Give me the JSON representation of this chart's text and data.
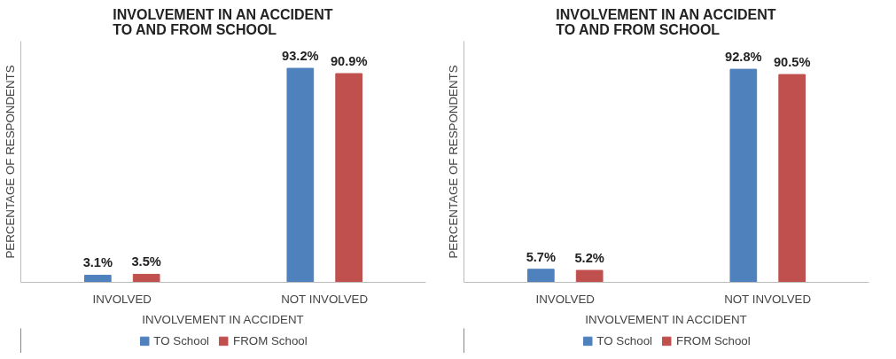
{
  "chart_data": [
    {
      "type": "bar",
      "title": "INVOLVEMENT IN AN ACCIDENT\nTO AND FROM SCHOOL",
      "xlabel": "INVOLVEMENT IN ACCIDENT",
      "ylabel": "PERCENTAGE OF RESPONDENTS",
      "categories": [
        "INVOLVED",
        "NOT INVOLVED"
      ],
      "ylim": [
        0,
        105
      ],
      "tick_labels": "x",
      "legend": "bottom",
      "grid": false,
      "series": [
        {
          "name": "TO School",
          "color": "#4f81bd",
          "values": [
            3.1,
            93.2
          ],
          "value_labels": [
            "3.1%",
            "93.2%"
          ]
        },
        {
          "name": "FROM School",
          "color": "#c0504d",
          "values": [
            3.5,
            90.9
          ],
          "value_labels": [
            "3.5%",
            "90.9%"
          ]
        }
      ]
    },
    {
      "type": "bar",
      "title": "INVOLVEMENT IN AN ACCIDENT\nTO AND FROM SCHOOL",
      "xlabel": "INVOLVEMENT IN ACCIDENT",
      "ylabel": "PERCENTAGE OF RESPONDENTS",
      "categories": [
        "INVOLVED",
        "NOT INVOLVED"
      ],
      "ylim": [
        0,
        105
      ],
      "tick_labels": "x",
      "legend": "bottom",
      "grid": false,
      "series": [
        {
          "name": "TO School",
          "color": "#4f81bd",
          "values": [
            5.7,
            92.8
          ],
          "value_labels": [
            "5.7%",
            "92.8%"
          ]
        },
        {
          "name": "FROM School",
          "color": "#c0504d",
          "values": [
            5.2,
            90.5
          ],
          "value_labels": [
            "5.2%",
            "90.5%"
          ]
        }
      ]
    }
  ]
}
